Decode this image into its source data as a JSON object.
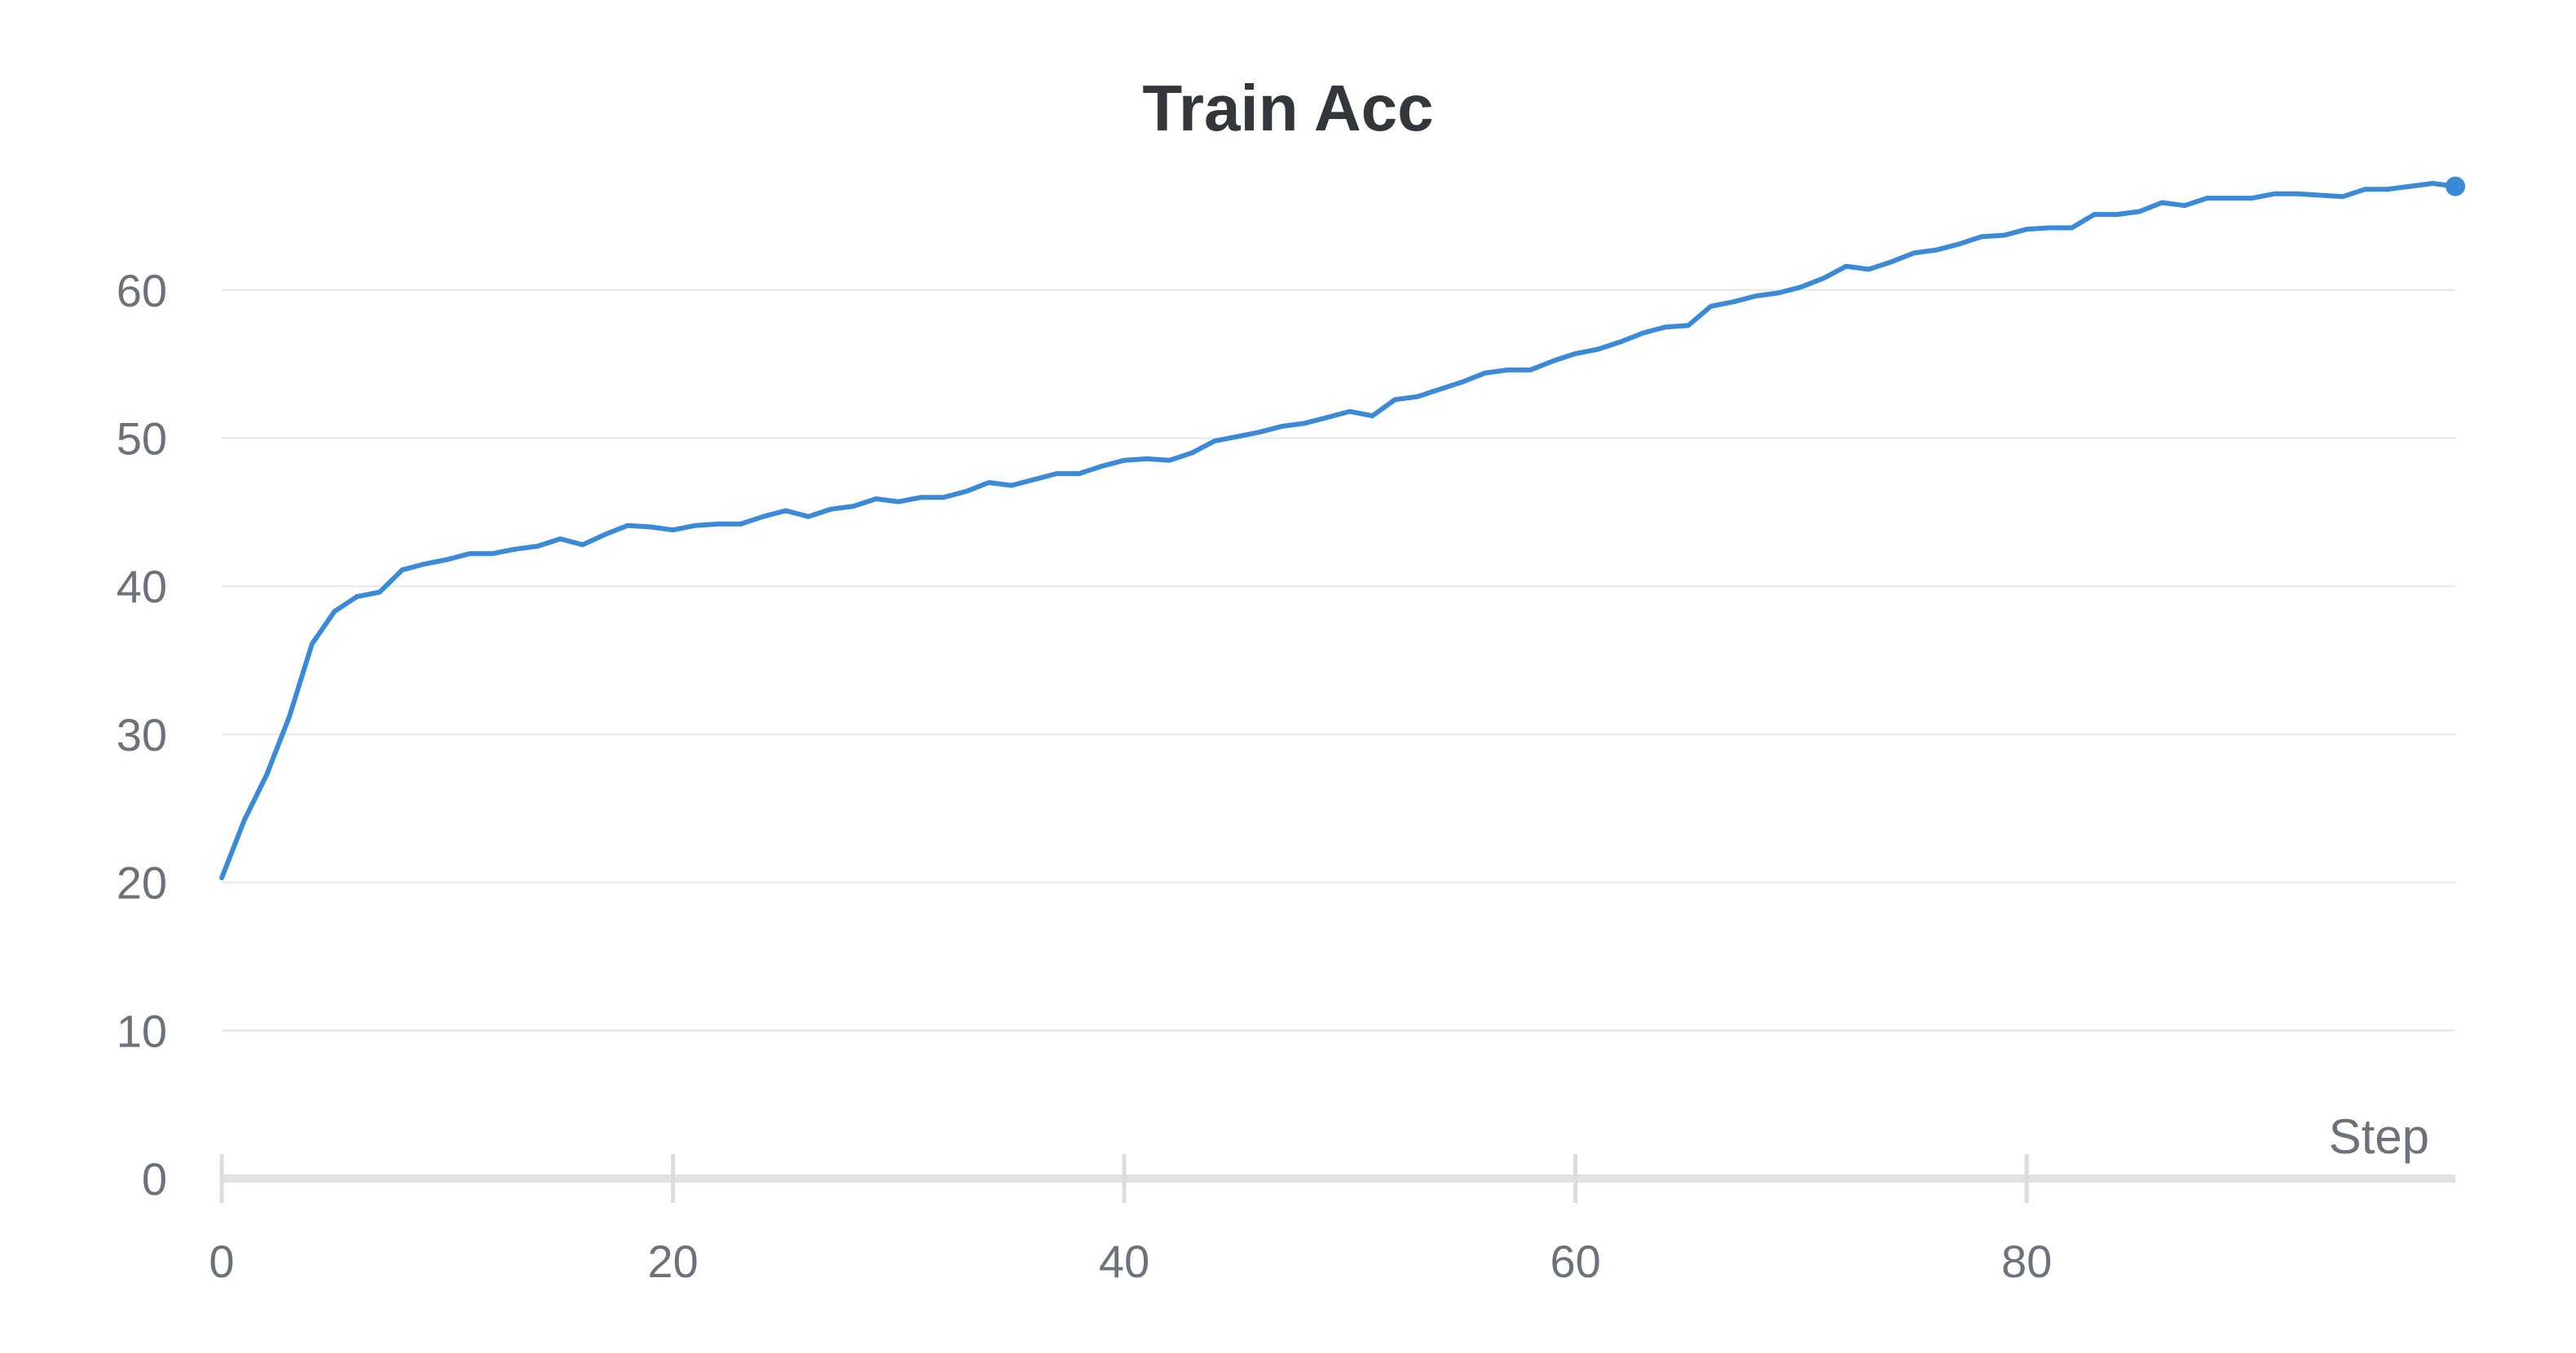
{
  "chart_data": {
    "type": "line",
    "title": "Train Acc",
    "xlabel": "Step",
    "ylabel": "",
    "xlim": [
      0,
      99
    ],
    "ylim": [
      0,
      70
    ],
    "xticks": [
      0,
      20,
      40,
      60,
      80
    ],
    "yticks": [
      0,
      10,
      20,
      30,
      40,
      50,
      60
    ],
    "grid": true,
    "legend": "none",
    "colors": {
      "series": "#3b8ad8",
      "grid": "#e6e6e6",
      "axis": "#e2e2e2",
      "text": "#6d717a",
      "title": "#33363b"
    },
    "series": [
      {
        "x": [
          0,
          1,
          2,
          3,
          4,
          5,
          6,
          7,
          8,
          9,
          10,
          11,
          12,
          13,
          14,
          15,
          16,
          17,
          18,
          19,
          20,
          21,
          22,
          23,
          24,
          25,
          26,
          27,
          28,
          29,
          30,
          31,
          32,
          33,
          34,
          35,
          36,
          37,
          38,
          39,
          40,
          41,
          42,
          43,
          44,
          45,
          46,
          47,
          48,
          49,
          50,
          51,
          52,
          53,
          54,
          55,
          56,
          57,
          58,
          59,
          60,
          61,
          62,
          63,
          64,
          65,
          66,
          67,
          68,
          69,
          70,
          71,
          72,
          73,
          74,
          75,
          76,
          77,
          78,
          79,
          80,
          81,
          82,
          83,
          84,
          85,
          86,
          87,
          88,
          89,
          90,
          91,
          92,
          93,
          94,
          95,
          96,
          97,
          98,
          99
        ],
        "values": [
          20.3,
          24.2,
          27.3,
          31.2,
          36.1,
          38.3,
          39.3,
          39.6,
          41.1,
          41.5,
          41.8,
          42.2,
          42.2,
          42.5,
          42.7,
          43.2,
          42.8,
          43.5,
          44.1,
          44.0,
          43.8,
          44.1,
          44.2,
          44.2,
          44.7,
          45.1,
          44.7,
          45.2,
          45.4,
          45.9,
          45.7,
          46.0,
          46.0,
          46.4,
          47.0,
          46.8,
          47.2,
          47.6,
          47.6,
          48.1,
          48.5,
          48.6,
          48.5,
          49.0,
          49.8,
          50.1,
          50.4,
          50.8,
          51.0,
          51.4,
          51.8,
          51.5,
          52.6,
          52.8,
          53.3,
          53.8,
          54.4,
          54.6,
          54.6,
          55.2,
          55.7,
          56.0,
          56.5,
          57.1,
          57.5,
          57.6,
          58.9,
          59.2,
          59.6,
          59.8,
          60.2,
          60.8,
          61.6,
          61.4,
          61.9,
          62.5,
          62.7,
          63.1,
          63.6,
          63.7,
          64.1,
          64.2,
          64.2,
          65.1,
          65.1,
          65.3,
          65.9,
          65.7,
          66.2,
          66.2,
          66.2,
          66.5,
          66.5,
          66.4,
          66.3,
          66.8,
          66.8,
          67.0,
          67.2,
          67.0
        ]
      }
    ]
  }
}
